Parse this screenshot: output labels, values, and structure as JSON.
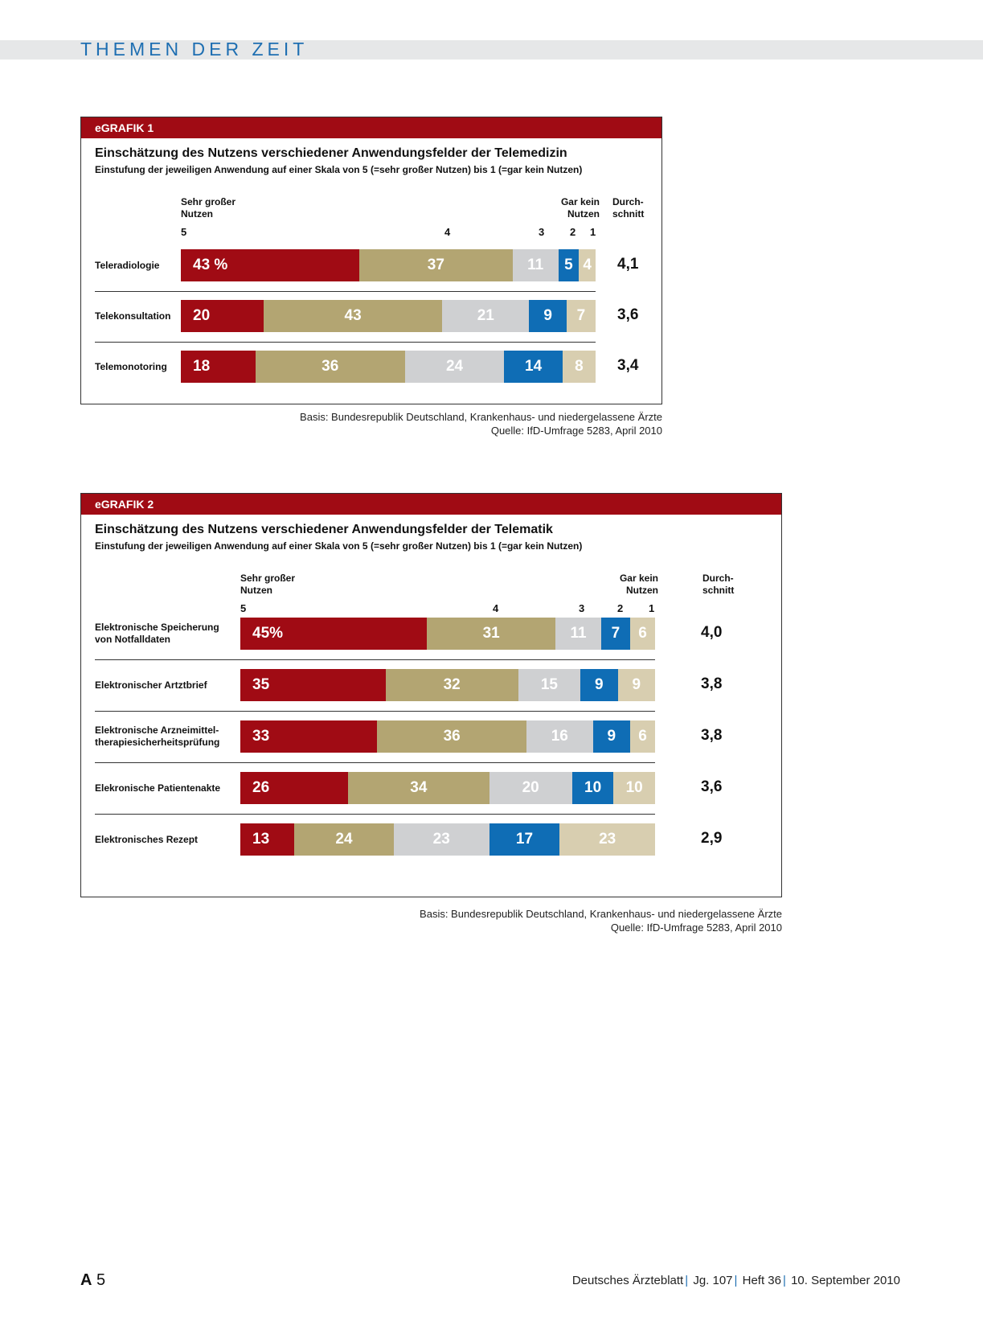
{
  "section_title": "THEMEN DER ZEIT",
  "colors": {
    "score5": "#a00b14",
    "score4": "#b3a572",
    "score3": "#cfd0d2",
    "score2": "#0f6db5",
    "score1": "#d8ceb0",
    "tag_bg": "#a00b14",
    "section_title": "#1f6fb2"
  },
  "chart_data": [
    {
      "type": "bar",
      "stacked": true,
      "orientation": "horizontal",
      "tag": "eGRAFIK 1",
      "title": "Einschätzung des Nutzens verschiedener Anwendungsfelder der Telemedizin",
      "subtitle": "Einstufung der jeweiligen Anwendung auf einer Skala von 5 (=sehr großer Nutzen) bis 1 (=gar kein Nutzen)",
      "scale_left_label": "Sehr großer Nutzen",
      "scale_right_label": "Gar kein Nutzen",
      "average_header": "Durch-schnitt",
      "scale_ticks": [
        "5",
        "4",
        "3",
        "2",
        "1"
      ],
      "categories": [
        "Teleradiologie",
        "Telekonsultation",
        "Telemonotoring"
      ],
      "series": [
        {
          "name": "5",
          "values": [
            43,
            20,
            18
          ]
        },
        {
          "name": "4",
          "values": [
            37,
            43,
            36
          ]
        },
        {
          "name": "3",
          "values": [
            11,
            21,
            24
          ]
        },
        {
          "name": "2",
          "values": [
            5,
            9,
            14
          ]
        },
        {
          "name": "1",
          "values": [
            4,
            7,
            8
          ]
        }
      ],
      "value_labels": [
        [
          "43 %",
          "37",
          "11",
          "5",
          "4"
        ],
        [
          "20",
          "43",
          "21",
          "9",
          "7"
        ],
        [
          "18",
          "36",
          "24",
          "14",
          "8"
        ]
      ],
      "averages": [
        "4,1",
        "3,6",
        "3,4"
      ],
      "footnote_basis": "Basis: Bundesrepublik Deutschland, Krankenhaus- und niedergelassene Ärzte",
      "footnote_source": "Quelle: IfD-Umfrage 5283, April 2010"
    },
    {
      "type": "bar",
      "stacked": true,
      "orientation": "horizontal",
      "tag": "eGRAFIK 2",
      "title": "Einschätzung des Nutzens verschiedener Anwendungsfelder der Telematik",
      "subtitle": "Einstufung der jeweiligen Anwendung auf einer Skala von 5 (=sehr großer Nutzen) bis 1 (=gar kein Nutzen)",
      "scale_left_label": "Sehr großer Nutzen",
      "scale_right_label": "Gar kein Nutzen",
      "average_header": "Durch-schnitt",
      "scale_ticks": [
        "5",
        "4",
        "3",
        "2",
        "1"
      ],
      "categories": [
        "Elektronische Speicherung von Notfalldaten",
        "Elektronischer Artztbrief",
        "Elektronische Arzneimittel-therapiesicherheitsprüfung",
        "Elekronische Patientenakte",
        "Elektronisches Rezept"
      ],
      "series": [
        {
          "name": "5",
          "values": [
            45,
            35,
            33,
            26,
            13
          ]
        },
        {
          "name": "4",
          "values": [
            31,
            32,
            36,
            34,
            24
          ]
        },
        {
          "name": "3",
          "values": [
            11,
            15,
            16,
            20,
            23
          ]
        },
        {
          "name": "2",
          "values": [
            7,
            9,
            9,
            10,
            17
          ]
        },
        {
          "name": "1",
          "values": [
            6,
            9,
            6,
            10,
            23
          ]
        }
      ],
      "value_labels": [
        [
          "45%",
          "31",
          "11",
          "7",
          "6"
        ],
        [
          "35",
          "32",
          "15",
          "9",
          "9"
        ],
        [
          "33",
          "36",
          "16",
          "9",
          "6"
        ],
        [
          "26",
          "34",
          "20",
          "10",
          "10"
        ],
        [
          "13",
          "24",
          "23",
          "17",
          "23"
        ]
      ],
      "averages": [
        "4,0",
        "3,8",
        "3,8",
        "3,6",
        "2,9"
      ],
      "footnote_basis": "Basis: Bundesrepublik Deutschland, Krankenhaus- und niedergelassene Ärzte",
      "footnote_source": "Quelle: IfD-Umfrage 5283, April 2010"
    }
  ],
  "footer": {
    "page_prefix": "A",
    "page_number": "5",
    "journal": "Deutsches Ärzteblatt",
    "volume": "Jg. 107",
    "issue": "Heft 36",
    "date": "10. September 2010"
  }
}
